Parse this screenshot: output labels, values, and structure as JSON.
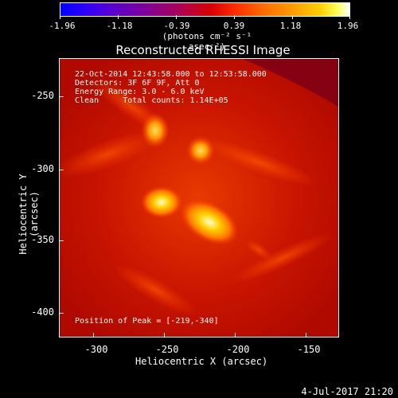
{
  "colorbar": {
    "tick_labels": [
      "-1.96",
      "-1.18",
      "-0.39",
      "0.39",
      "1.18",
      "1.96"
    ],
    "units": "(photons cm⁻² s⁻¹ asec⁻²)"
  },
  "title": "Reconstructed RHESSI Image",
  "annotations": {
    "line1": "22-Oct-2014 12:43:58.000 to 12:53:58.000",
    "line2": "Detectors: 3F 6F 9F, Att 0",
    "line3": "Energy Range: 3.0 - 6.0 keV",
    "line4": "Clean     Total counts: 1.14E+05",
    "peak": "Position of Peak = [-219,-340]"
  },
  "axes": {
    "xlabel": "Heliocentric X (arcsec)",
    "ylabel": "Heliocentric Y (arcsec)",
    "xticks": [
      "-300",
      "-250",
      "-200",
      "-150"
    ],
    "yticks": [
      "-250",
      "-300",
      "-350",
      "-400"
    ]
  },
  "timestamp": "4-Jul-2017 21:20",
  "colors": {
    "background": "#000000",
    "image_base": "#c81400"
  }
}
